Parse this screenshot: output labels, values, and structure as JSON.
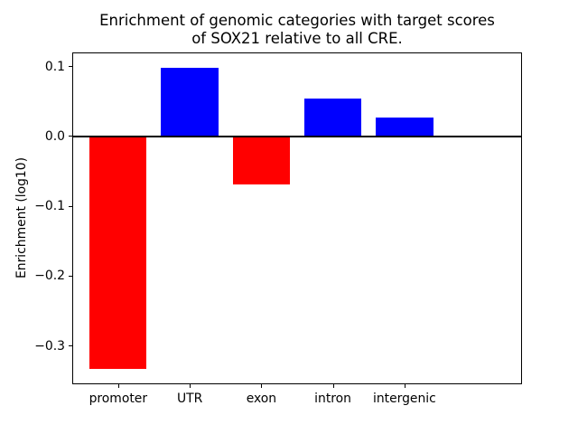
{
  "figure": {
    "background": "#ffffff"
  },
  "chart_data": {
    "type": "bar",
    "title": "Enrichment of genomic categories with target scores\nof SOX21 relative to all CRE.",
    "title_lines": [
      "Enrichment of genomic categories with target scores",
      "of SOX21 relative to all CRE."
    ],
    "xlabel": "",
    "ylabel": "Enrichment (log10)",
    "categories": [
      "promoter",
      "UTR",
      "exon",
      "intron",
      "intergenic"
    ],
    "values": [
      -0.333,
      0.098,
      -0.069,
      0.054,
      0.027
    ],
    "bar_colors": [
      "#ff0000",
      "#0000ff",
      "#ff0000",
      "#0000ff",
      "#0000ff"
    ],
    "positive_color": "#0000ff",
    "negative_color": "#ff0000",
    "ylim": [
      -0.355,
      0.12
    ],
    "yticks": [
      0.1,
      0.0,
      -0.1,
      -0.2,
      -0.3
    ],
    "ytick_labels": [
      "0.1",
      "0.0",
      "−0.1",
      "−0.2",
      "−0.3"
    ],
    "grid": false,
    "legend": false,
    "zero_line": true,
    "axis_color": "#000000",
    "text_color": "#000000"
  }
}
